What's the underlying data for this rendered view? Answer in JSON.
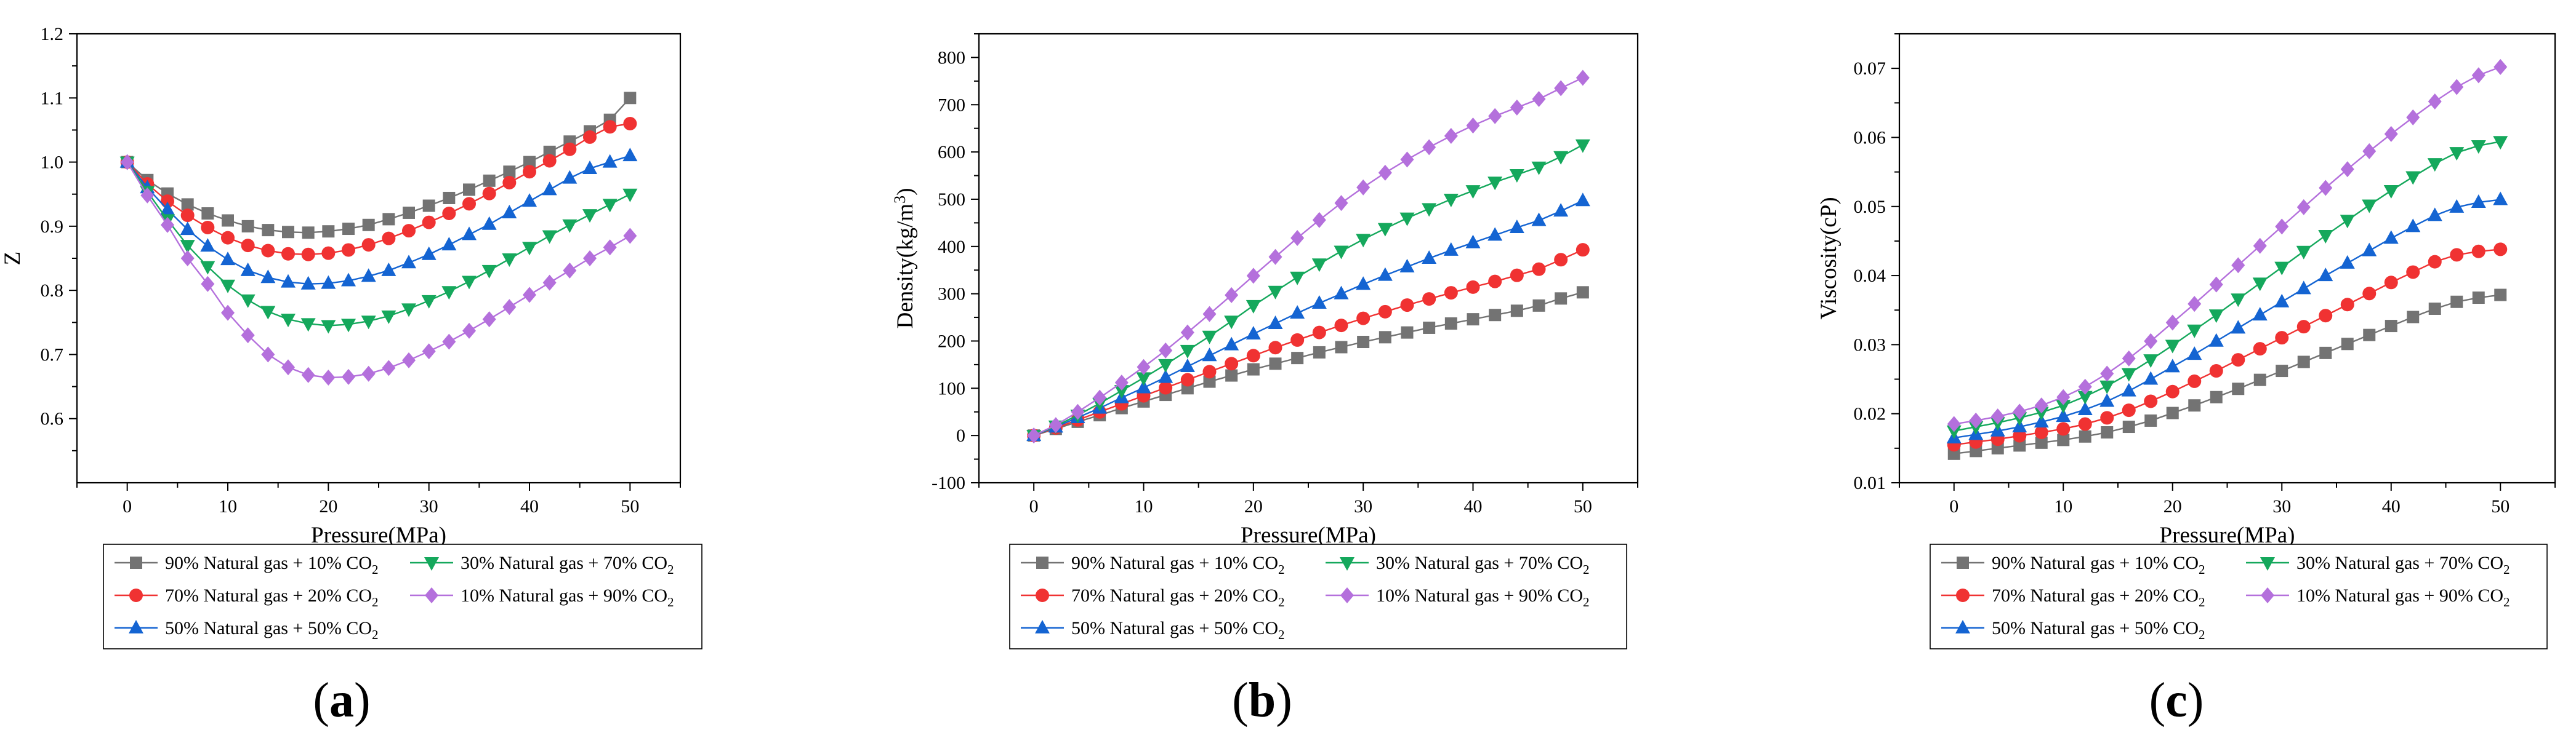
{
  "series_meta": [
    {
      "key": "s90",
      "name_main": "90% Natural gas + 10% CO",
      "name_sub": "2",
      "color": "#737373",
      "marker": "square"
    },
    {
      "key": "s70",
      "name_main": "70% Natural gas + 20% CO",
      "name_sub": "2",
      "color": "#f03232",
      "marker": "circle"
    },
    {
      "key": "s50",
      "name_main": "50% Natural gas + 50% CO",
      "name_sub": "2",
      "color": "#1464d2",
      "marker": "triangle-up"
    },
    {
      "key": "s30",
      "name_main": "30% Natural gas + 70% CO",
      "name_sub": "2",
      "color": "#15a85c",
      "marker": "triangle-down"
    },
    {
      "key": "s10",
      "name_main": "10% Natural gas + 90% CO",
      "name_sub": "2",
      "color": "#b470dc",
      "marker": "diamond"
    }
  ],
  "chart_data": [
    {
      "type": "line",
      "panel": "a",
      "caption": "(a)",
      "xlabel": "Pressure(MPa)",
      "ylabel": "Z",
      "xlim": [
        -5,
        55
      ],
      "ylim": [
        0.5,
        1.2
      ],
      "xticks": [
        0,
        10,
        20,
        30,
        40,
        50
      ],
      "yticks": [
        0.6,
        0.7,
        0.8,
        0.9,
        1.0,
        1.1,
        1.2
      ],
      "ytick_labels": [
        "0.6",
        "0.7",
        "0.8",
        "0.9",
        "1.0",
        "1.1",
        "1.2"
      ],
      "grid": false,
      "legend_position": "bottom",
      "x": [
        0,
        2,
        4,
        6,
        8,
        10,
        12,
        14,
        16,
        18,
        20,
        22,
        24,
        26,
        28,
        30,
        32,
        34,
        36,
        38,
        40,
        42,
        44,
        46,
        48,
        50
      ],
      "series": [
        {
          "name": "90% Natural gas + 10% CO2",
          "values": [
            1.0,
            0.972,
            0.951,
            0.934,
            0.92,
            0.909,
            0.9,
            0.894,
            0.891,
            0.89,
            0.892,
            0.896,
            0.902,
            0.911,
            0.921,
            0.932,
            0.944,
            0.957,
            0.971,
            0.985,
            1.0,
            1.016,
            1.032,
            1.048,
            1.066,
            1.1
          ]
        },
        {
          "name": "70% Natural gas + 20% CO2",
          "values": [
            1.0,
            0.966,
            0.939,
            0.917,
            0.898,
            0.882,
            0.87,
            0.862,
            0.857,
            0.856,
            0.858,
            0.863,
            0.871,
            0.881,
            0.893,
            0.906,
            0.92,
            0.935,
            0.951,
            0.968,
            0.985,
            1.002,
            1.02,
            1.039,
            1.055,
            1.06
          ]
        },
        {
          "name": "50% Natural gas + 50% CO2",
          "values": [
            1.0,
            0.96,
            0.926,
            0.895,
            0.869,
            0.848,
            0.831,
            0.82,
            0.813,
            0.81,
            0.811,
            0.815,
            0.822,
            0.831,
            0.843,
            0.856,
            0.871,
            0.887,
            0.903,
            0.921,
            0.939,
            0.957,
            0.975,
            0.99,
            1.0,
            1.01
          ]
        },
        {
          "name": "30% Natural gas + 70% CO2",
          "values": [
            1.0,
            0.954,
            0.91,
            0.87,
            0.837,
            0.808,
            0.785,
            0.767,
            0.755,
            0.748,
            0.745,
            0.747,
            0.752,
            0.76,
            0.771,
            0.784,
            0.798,
            0.814,
            0.831,
            0.849,
            0.867,
            0.885,
            0.902,
            0.918,
            0.934,
            0.95
          ]
        },
        {
          "name": "10% Natural gas + 90% CO2",
          "values": [
            1.0,
            0.948,
            0.902,
            0.85,
            0.81,
            0.765,
            0.73,
            0.7,
            0.68,
            0.668,
            0.664,
            0.665,
            0.67,
            0.679,
            0.691,
            0.705,
            0.72,
            0.737,
            0.755,
            0.774,
            0.793,
            0.812,
            0.831,
            0.85,
            0.867,
            0.885
          ]
        }
      ]
    },
    {
      "type": "line",
      "panel": "b",
      "caption": "(b)",
      "xlabel": "Pressure(MPa)",
      "ylabel_main": "Density(kg/m",
      "ylabel_sup": "3",
      "ylabel_end": ")",
      "xlim": [
        -5,
        55
      ],
      "ylim": [
        -100,
        850
      ],
      "xticks": [
        0,
        10,
        20,
        30,
        40,
        50
      ],
      "yticks": [
        -100,
        0,
        100,
        200,
        300,
        400,
        500,
        600,
        700,
        800
      ],
      "ytick_labels": [
        "-100",
        "0",
        "100",
        "200",
        "300",
        "400",
        "500",
        "600",
        "700",
        "800"
      ],
      "grid": false,
      "legend_position": "bottom",
      "x": [
        0,
        2,
        4,
        6,
        8,
        10,
        12,
        14,
        16,
        18,
        20,
        22,
        24,
        26,
        28,
        30,
        32,
        34,
        36,
        38,
        40,
        42,
        44,
        46,
        48,
        50
      ],
      "series": [
        {
          "name": "90% Natural gas + 10% CO2",
          "values": [
            0,
            14,
            29,
            43,
            58,
            72,
            86,
            100,
            114,
            127,
            140,
            152,
            164,
            176,
            187,
            198,
            208,
            218,
            228,
            237,
            246,
            255,
            264,
            275,
            290,
            303
          ]
        },
        {
          "name": "70% Natural gas + 20% CO2",
          "values": [
            0,
            16,
            33,
            50,
            67,
            84,
            101,
            118,
            135,
            152,
            169,
            186,
            202,
            218,
            233,
            248,
            262,
            276,
            289,
            302,
            314,
            326,
            339,
            352,
            372,
            393
          ]
        },
        {
          "name": "50% Natural gas + 50% CO2",
          "values": [
            0,
            18,
            38,
            58,
            80,
            101,
            123,
            146,
            169,
            192,
            215,
            237,
            259,
            280,
            300,
            320,
            339,
            357,
            375,
            392,
            408,
            424,
            440,
            455,
            475,
            497
          ]
        },
        {
          "name": "30% Natural gas + 70% CO2",
          "values": [
            0,
            20,
            43,
            68,
            95,
            122,
            150,
            180,
            210,
            242,
            275,
            305,
            335,
            363,
            390,
            415,
            438,
            460,
            480,
            500,
            518,
            536,
            552,
            568,
            590,
            615
          ]
        },
        {
          "name": "10% Natural gas + 90% CO2",
          "values": [
            0,
            22,
            50,
            80,
            112,
            145,
            180,
            218,
            257,
            297,
            338,
            378,
            418,
            456,
            492,
            525,
            556,
            584,
            610,
            634,
            656,
            676,
            694,
            712,
            735,
            757
          ]
        }
      ]
    },
    {
      "type": "line",
      "panel": "c",
      "caption": "(c)",
      "xlabel": "Pressure(MPa)",
      "ylabel": "Viscosity(cP)",
      "xlim": [
        -5,
        55
      ],
      "ylim": [
        0.01,
        0.075
      ],
      "xticks": [
        0,
        10,
        20,
        30,
        40,
        50
      ],
      "yticks": [
        0.01,
        0.02,
        0.03,
        0.04,
        0.05,
        0.06,
        0.07
      ],
      "ytick_labels": [
        "0.01",
        "0.02",
        "0.03",
        "0.04",
        "0.05",
        "0.06",
        "0.07"
      ],
      "grid": false,
      "legend_position": "bottom",
      "x": [
        0,
        2,
        4,
        6,
        8,
        10,
        12,
        14,
        16,
        18,
        20,
        22,
        24,
        26,
        28,
        30,
        32,
        34,
        36,
        38,
        40,
        42,
        44,
        46,
        48,
        50
      ],
      "series": [
        {
          "name": "90% Natural gas + 10% CO2",
          "values": [
            0.0142,
            0.0146,
            0.015,
            0.0154,
            0.0158,
            0.0162,
            0.0167,
            0.0173,
            0.0181,
            0.019,
            0.0201,
            0.0212,
            0.0224,
            0.0236,
            0.0249,
            0.0262,
            0.0275,
            0.0288,
            0.0301,
            0.0314,
            0.0327,
            0.034,
            0.0352,
            0.0362,
            0.0368,
            0.0372
          ]
        },
        {
          "name": "70% Natural gas + 20% CO2",
          "values": [
            0.0155,
            0.0159,
            0.0163,
            0.0168,
            0.0173,
            0.0178,
            0.0185,
            0.0194,
            0.0205,
            0.0218,
            0.0232,
            0.0247,
            0.0262,
            0.0278,
            0.0294,
            0.031,
            0.0326,
            0.0342,
            0.0358,
            0.0374,
            0.039,
            0.0405,
            0.042,
            0.043,
            0.0435,
            0.0438
          ]
        },
        {
          "name": "50% Natural gas + 50% CO2",
          "values": [
            0.0165,
            0.017,
            0.0175,
            0.0181,
            0.0188,
            0.0196,
            0.0206,
            0.0218,
            0.0233,
            0.025,
            0.0268,
            0.0286,
            0.0305,
            0.0324,
            0.0343,
            0.0362,
            0.0381,
            0.04,
            0.0418,
            0.0436,
            0.0454,
            0.0471,
            0.0487,
            0.0499,
            0.0506,
            0.051
          ]
        },
        {
          "name": "30% Natural gas + 70% CO2",
          "values": [
            0.0175,
            0.0181,
            0.0187,
            0.0194,
            0.0202,
            0.0212,
            0.0225,
            0.024,
            0.0258,
            0.0278,
            0.0299,
            0.0321,
            0.0343,
            0.0366,
            0.0389,
            0.0412,
            0.0435,
            0.0458,
            0.048,
            0.0502,
            0.0523,
            0.0543,
            0.0562,
            0.0578,
            0.0588,
            0.0594
          ]
        },
        {
          "name": "10% Natural gas + 90% CO2",
          "values": [
            0.0185,
            0.019,
            0.0196,
            0.0203,
            0.0212,
            0.0224,
            0.0239,
            0.0258,
            0.028,
            0.0305,
            0.0332,
            0.0359,
            0.0387,
            0.0415,
            0.0443,
            0.0471,
            0.0499,
            0.0527,
            0.0554,
            0.058,
            0.0605,
            0.0629,
            0.0652,
            0.0673,
            0.069,
            0.0702
          ]
        }
      ]
    }
  ]
}
